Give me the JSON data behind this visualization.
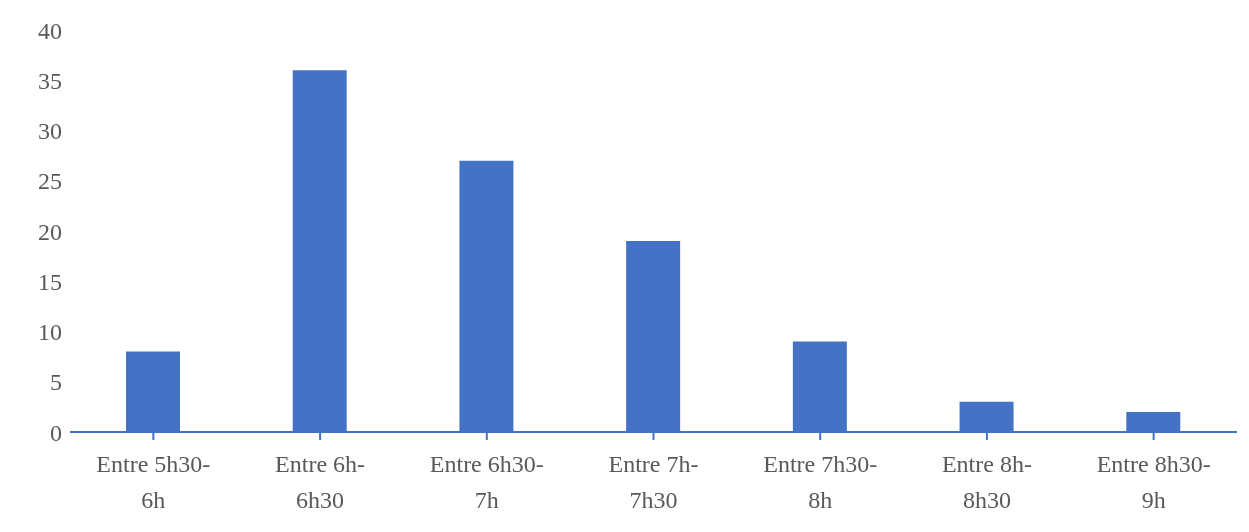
{
  "chart_data": {
    "type": "bar",
    "categories": [
      "Entre 5h30-6h",
      "Entre 6h-6h30",
      "Entre 6h30-7h",
      "Entre 7h-7h30",
      "Entre 7h30-8h",
      "Entre 8h-8h30",
      "Entre 8h30-9h"
    ],
    "values": [
      8,
      36,
      27,
      19,
      9,
      3,
      2
    ],
    "color": "#4472c4",
    "ylim": [
      0,
      40
    ],
    "yticks": [
      0,
      5,
      10,
      15,
      20,
      25,
      30,
      35,
      40
    ],
    "grid": false,
    "legend": false
  }
}
